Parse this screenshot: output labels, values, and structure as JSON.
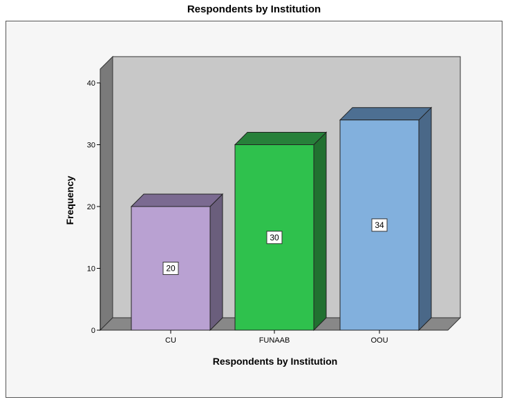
{
  "chart_data": {
    "type": "bar",
    "title": "Respondents by Institution",
    "xlabel": "Respondents by Institution",
    "ylabel": "Frequency",
    "categories": [
      "CU",
      "FUNAAB",
      "OOU"
    ],
    "values": [
      20,
      30,
      34
    ],
    "ylim": [
      0,
      40
    ],
    "yticks": [
      0,
      10,
      20,
      30,
      40
    ],
    "grid": false,
    "style": "3d",
    "colors": {
      "bars": [
        "#b9a1d2",
        "#2fc14d",
        "#82b0dd"
      ],
      "bars_side": [
        "#6a5e7c",
        "#217030",
        "#4a6888"
      ],
      "bars_top": [
        "#7b6a91",
        "#27803a",
        "#4d6f92"
      ],
      "back_wall": "#c8c8c8",
      "floor": "#888888",
      "side_wall": "#7a7a7a"
    }
  }
}
